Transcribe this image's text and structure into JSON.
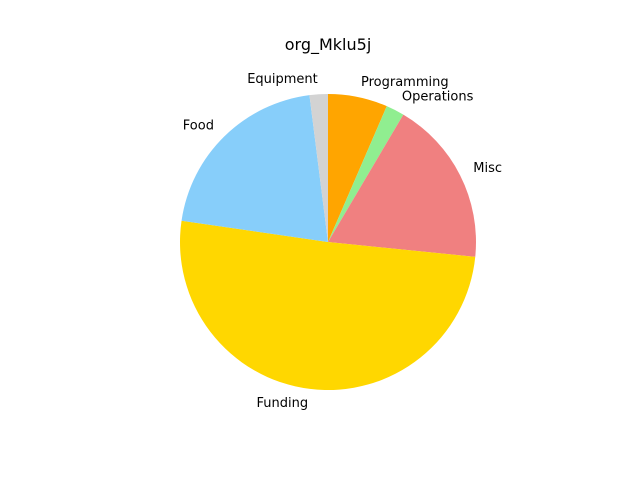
{
  "chart_data": {
    "type": "pie",
    "title": "org_Mklu5j",
    "start_angle_deg": 90,
    "direction": "clockwise",
    "legend": "none",
    "slices": [
      {
        "label": "Programming",
        "value": 6.5,
        "color": "#FFA500"
      },
      {
        "label": "Operations",
        "value": 2.0,
        "color": "#90EE90"
      },
      {
        "label": "Misc",
        "value": 18.1,
        "color": "#F08080"
      },
      {
        "label": "Funding",
        "value": 50.7,
        "color": "#FFD700"
      },
      {
        "label": "Food",
        "value": 20.7,
        "color": "#87CEFA"
      },
      {
        "label": "Equipment",
        "value": 2.0,
        "color": "#D3D3D3"
      }
    ]
  }
}
